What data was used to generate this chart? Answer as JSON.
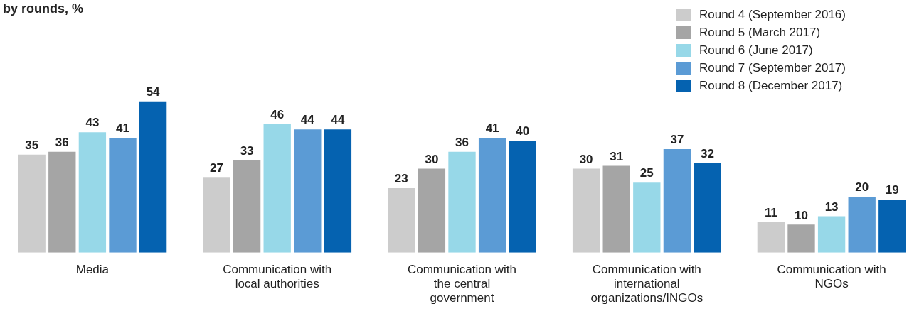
{
  "chart_data": {
    "type": "bar",
    "title": "by rounds, %",
    "categories": [
      "Media",
      "Communication with local authorities",
      "Communication with the central government",
      "Communication with international organizations/INGOs",
      "Communication with NGOs"
    ],
    "series": [
      {
        "name": "Round 4 (September 2016)",
        "color": "#cccccc",
        "values": [
          35,
          27,
          23,
          30,
          11
        ]
      },
      {
        "name": "Round 5 (March 2017)",
        "color": "#a5a5a5",
        "values": [
          36,
          33,
          30,
          31,
          10
        ]
      },
      {
        "name": "Round 6 (June 2017)",
        "color": "#97d8e8",
        "values": [
          43,
          46,
          36,
          25,
          13
        ]
      },
      {
        "name": "Round 7 (September 2017)",
        "color": "#5b9bd5",
        "values": [
          41,
          44,
          41,
          37,
          20
        ]
      },
      {
        "name": "Round 8 (December 2017)",
        "color": "#0562b0",
        "values": [
          54,
          44,
          40,
          32,
          19
        ]
      }
    ],
    "data_labels": true,
    "grid": false,
    "legend": "top right"
  }
}
